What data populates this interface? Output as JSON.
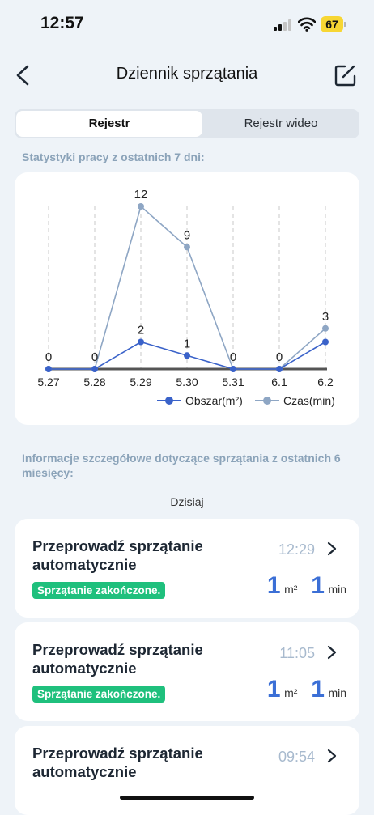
{
  "status": {
    "time": "12:57",
    "battery": "67"
  },
  "nav": {
    "title": "Dziennik sprzątania"
  },
  "tabs": {
    "active": "Rejestr",
    "inactive": "Rejestr wideo"
  },
  "stats_label": "Statystyki pracy z ostatnich 7 dni:",
  "details_label": "Informacje szczegółowe dotyczące sprzątania z ostatnich 6 miesięcy:",
  "day_label": "Dzisiaj",
  "colors": {
    "area": "#3a62c9",
    "time": "#8ea6c4",
    "badge": "#1fc07d",
    "accent": "#3b6fd6"
  },
  "chart_data": {
    "type": "line",
    "categories": [
      "5.27",
      "5.28",
      "5.29",
      "5.30",
      "5.31",
      "6.1",
      "6.2"
    ],
    "series": [
      {
        "name": "Obszar(m²)",
        "values": [
          0,
          0,
          2,
          1,
          0,
          0,
          2
        ]
      },
      {
        "name": "Czas(min)",
        "values": [
          0,
          0,
          12,
          9,
          0,
          0,
          3
        ]
      }
    ],
    "value_labels": [
      "0",
      "0",
      "12",
      "9",
      "0",
      "0",
      "3"
    ],
    "area_labels": [
      "2",
      "1"
    ],
    "ylim": [
      0,
      12
    ],
    "grid": "vertical dashed",
    "legend": "bottom-right"
  },
  "entries": [
    {
      "title": "Przeprowadź sprzątanie automatycznie",
      "time": "12:29",
      "status": "Sprzątanie zakończone.",
      "area": "1",
      "area_unit": "m²",
      "duration": "1",
      "duration_unit": "min"
    },
    {
      "title": "Przeprowadź sprzątanie automatycznie",
      "time": "11:05",
      "status": "Sprzątanie zakończone.",
      "area": "1",
      "area_unit": "m²",
      "duration": "1",
      "duration_unit": "min"
    },
    {
      "title": "Przeprowadź sprzątanie automatycznie",
      "time": "09:54"
    }
  ]
}
